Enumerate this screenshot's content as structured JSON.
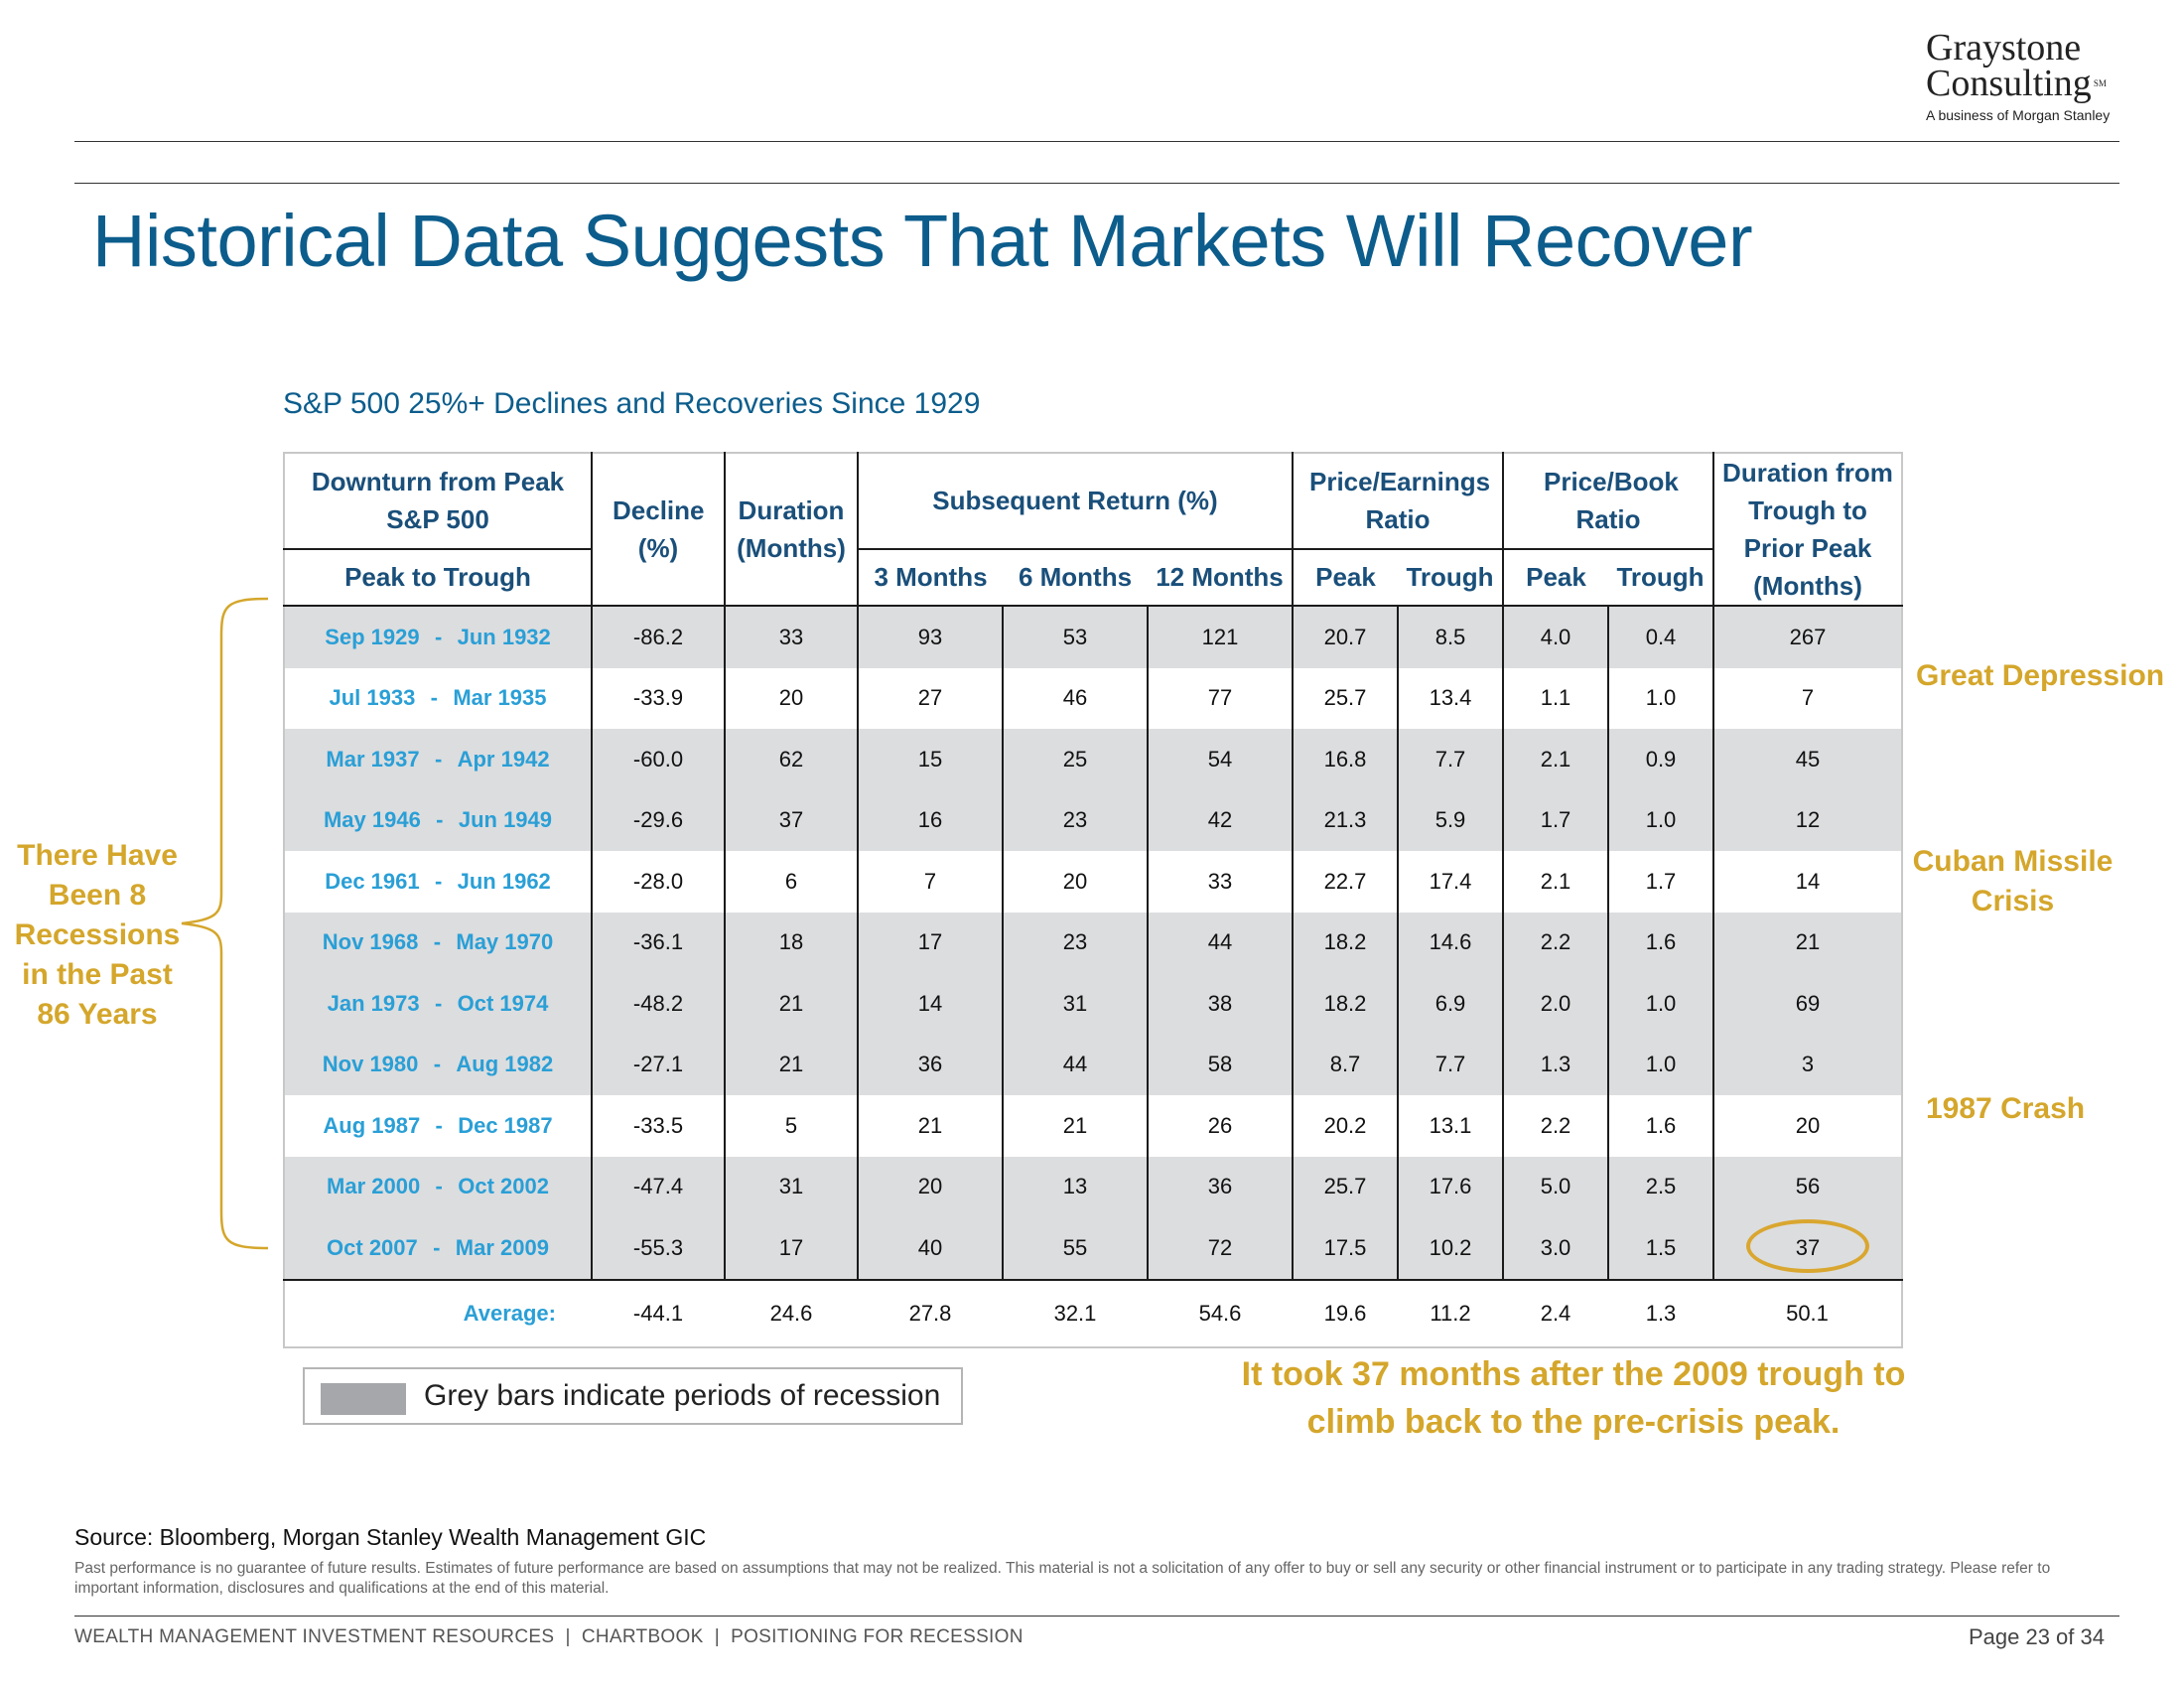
{
  "logo": {
    "line1": "Graystone",
    "line2": "Consulting",
    "sm": "SM",
    "tagline": "A business of Morgan Stanley"
  },
  "title": "Historical Data Suggests That Markets Will Recover",
  "table": {
    "caption": "S&P 500 25%+ Declines and Recoveries Since 1929",
    "headers": {
      "downturn": "Downturn from Peak S&P 500",
      "peak_to_trough": "Peak to Trough",
      "decline": "Decline (%)",
      "duration": "Duration (Months)",
      "subsequent_return": "Subsequent Return (%)",
      "m3": "3 Months",
      "m6": "6 Months",
      "m12": "12 Months",
      "pe": "Price/Earnings Ratio",
      "pe_peak": "Peak",
      "pe_trough": "Trough",
      "pb": "Price/Book Ratio",
      "pb_peak": "Peak",
      "pb_trough": "Trough",
      "recovery": "Duration from Trough to Prior Peak (Months)"
    },
    "separator": "-",
    "rows": [
      {
        "peak": "Sep 1929",
        "trough": "Jun 1932",
        "decline": "-86.2",
        "duration": "33",
        "m3": "93",
        "m6": "53",
        "m12": "121",
        "pe_peak": "20.7",
        "pe_trough": "8.5",
        "pb_peak": "4.0",
        "pb_trough": "0.4",
        "recovery": "267",
        "recession": true
      },
      {
        "peak": "Jul 1933",
        "trough": "Mar 1935",
        "decline": "-33.9",
        "duration": "20",
        "m3": "27",
        "m6": "46",
        "m12": "77",
        "pe_peak": "25.7",
        "pe_trough": "13.4",
        "pb_peak": "1.1",
        "pb_trough": "1.0",
        "recovery": "7",
        "recession": false
      },
      {
        "peak": "Mar 1937",
        "trough": "Apr 1942",
        "decline": "-60.0",
        "duration": "62",
        "m3": "15",
        "m6": "25",
        "m12": "54",
        "pe_peak": "16.8",
        "pe_trough": "7.7",
        "pb_peak": "2.1",
        "pb_trough": "0.9",
        "recovery": "45",
        "recession": true
      },
      {
        "peak": "May 1946",
        "trough": "Jun 1949",
        "decline": "-29.6",
        "duration": "37",
        "m3": "16",
        "m6": "23",
        "m12": "42",
        "pe_peak": "21.3",
        "pe_trough": "5.9",
        "pb_peak": "1.7",
        "pb_trough": "1.0",
        "recovery": "12",
        "recession": true
      },
      {
        "peak": "Dec 1961",
        "trough": "Jun 1962",
        "decline": "-28.0",
        "duration": "6",
        "m3": "7",
        "m6": "20",
        "m12": "33",
        "pe_peak": "22.7",
        "pe_trough": "17.4",
        "pb_peak": "2.1",
        "pb_trough": "1.7",
        "recovery": "14",
        "recession": false
      },
      {
        "peak": "Nov 1968",
        "trough": "May 1970",
        "decline": "-36.1",
        "duration": "18",
        "m3": "17",
        "m6": "23",
        "m12": "44",
        "pe_peak": "18.2",
        "pe_trough": "14.6",
        "pb_peak": "2.2",
        "pb_trough": "1.6",
        "recovery": "21",
        "recession": true
      },
      {
        "peak": "Jan 1973",
        "trough": "Oct 1974",
        "decline": "-48.2",
        "duration": "21",
        "m3": "14",
        "m6": "31",
        "m12": "38",
        "pe_peak": "18.2",
        "pe_trough": "6.9",
        "pb_peak": "2.0",
        "pb_trough": "1.0",
        "recovery": "69",
        "recession": true
      },
      {
        "peak": "Nov 1980",
        "trough": "Aug 1982",
        "decline": "-27.1",
        "duration": "21",
        "m3": "36",
        "m6": "44",
        "m12": "58",
        "pe_peak": "8.7",
        "pe_trough": "7.7",
        "pb_peak": "1.3",
        "pb_trough": "1.0",
        "recovery": "3",
        "recession": true
      },
      {
        "peak": "Aug 1987",
        "trough": "Dec 1987",
        "decline": "-33.5",
        "duration": "5",
        "m3": "21",
        "m6": "21",
        "m12": "26",
        "pe_peak": "20.2",
        "pe_trough": "13.1",
        "pb_peak": "2.2",
        "pb_trough": "1.6",
        "recovery": "20",
        "recession": false
      },
      {
        "peak": "Mar 2000",
        "trough": "Oct 2002",
        "decline": "-47.4",
        "duration": "31",
        "m3": "20",
        "m6": "13",
        "m12": "36",
        "pe_peak": "25.7",
        "pe_trough": "17.6",
        "pb_peak": "5.0",
        "pb_trough": "2.5",
        "recovery": "56",
        "recession": true
      },
      {
        "peak": "Oct 2007",
        "trough": "Mar 2009",
        "decline": "-55.3",
        "duration": "17",
        "m3": "40",
        "m6": "55",
        "m12": "72",
        "pe_peak": "17.5",
        "pe_trough": "10.2",
        "pb_peak": "3.0",
        "pb_trough": "1.5",
        "recovery": "37",
        "recession": true,
        "circled": true
      }
    ],
    "average": {
      "label": "Average:",
      "decline": "-44.1",
      "duration": "24.6",
      "m3": "27.8",
      "m6": "32.1",
      "m12": "54.6",
      "pe_peak": "19.6",
      "pe_trough": "11.2",
      "pb_peak": "2.4",
      "pb_trough": "1.3",
      "recovery": "50.1"
    }
  },
  "annotations": {
    "side_note_lines": [
      "There Have",
      "Been 8",
      "Recessions",
      "in the Past",
      "86 Years"
    ],
    "great_depression": "Great Depression",
    "cuban_line1": "Cuban Missile",
    "cuban_line2": "Crisis",
    "crash_1987": "1987 Crash",
    "bottom_line1": "It took 37 months after the 2009 trough to",
    "bottom_line2": "climb back to the pre-crisis peak."
  },
  "legend": {
    "text": "Grey bars indicate periods of recession"
  },
  "source": "Source: Bloomberg, Morgan Stanley Wealth Management GIC",
  "disclaimer": "Past performance is no guarantee of future results. Estimates of future performance are based on assumptions that may not be realized. This material is not a solicitation of any offer to buy or sell any security or other financial instrument or to participate in any trading strategy. Please refer to important information, disclosures and qualifications at the end of this material.",
  "footer": {
    "left": "WEALTH MANAGEMENT INVESTMENT RESOURCES  |  CHARTBOOK  |  POSITIONING FOR RECESSION",
    "page": "Page 23 of 34"
  },
  "colors": {
    "title_blue": "#0c5d8c",
    "header_blue": "#1a4f7a",
    "period_blue": "#2a9fd6",
    "gold": "#d4a62b",
    "recession_grey": "#dcdddf"
  }
}
